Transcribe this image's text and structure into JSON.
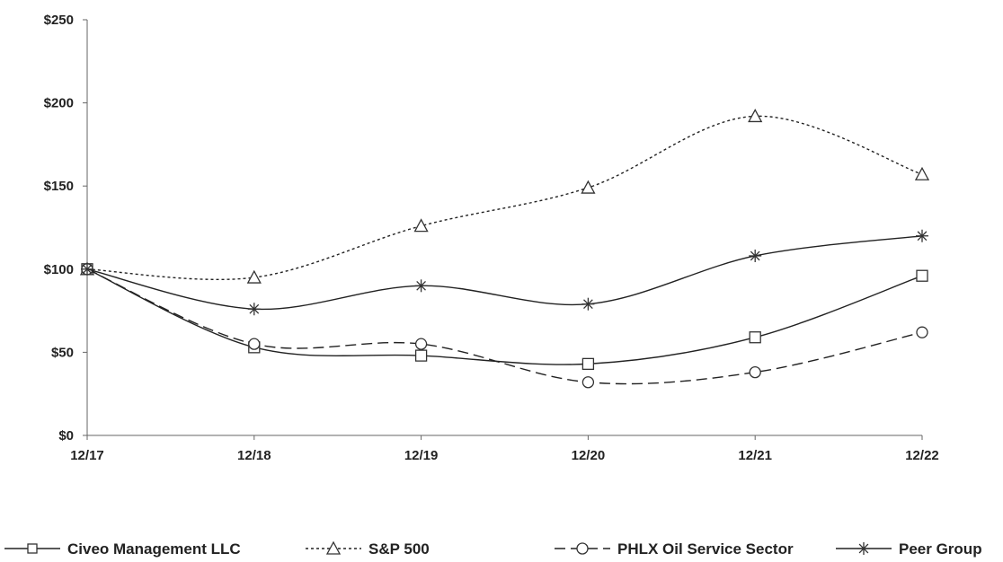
{
  "chart_data": {
    "type": "line",
    "title": "",
    "xlabel": "",
    "ylabel": "",
    "x": [
      "12/17",
      "12/18",
      "12/19",
      "12/20",
      "12/21",
      "12/22"
    ],
    "yticks": [
      "$0",
      "$50",
      "$100",
      "$150",
      "$200",
      "$250"
    ],
    "ylim": [
      0,
      250
    ],
    "grid": false,
    "legend": "bottom",
    "series": [
      {
        "name": "Civeo Management LLC",
        "values": [
          100,
          53,
          48,
          43,
          59,
          96
        ],
        "marker": "square",
        "dash": "solid"
      },
      {
        "name": "S&P 500",
        "values": [
          100,
          95,
          126,
          149,
          192,
          157
        ],
        "marker": "triangle",
        "dash": "dotted"
      },
      {
        "name": "PHLX Oil Service Sector",
        "values": [
          100,
          55,
          55,
          32,
          38,
          62
        ],
        "marker": "circle",
        "dash": "dashed"
      },
      {
        "name": "Peer Group",
        "values": [
          100,
          76,
          90,
          79,
          108,
          120
        ],
        "marker": "star",
        "dash": "solid"
      }
    ]
  }
}
